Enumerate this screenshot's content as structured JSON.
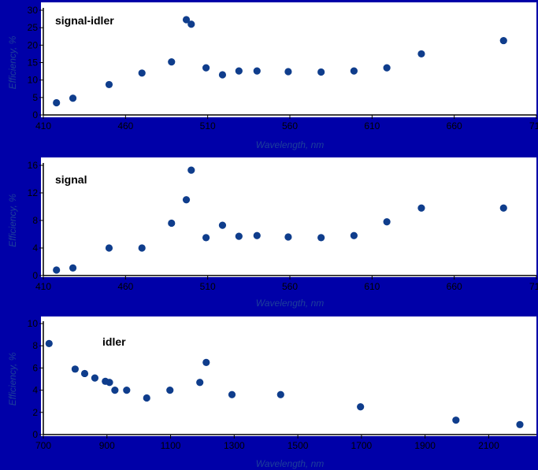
{
  "colors": {
    "background": "#0000a8",
    "panel": "#ffffff",
    "point": "#0f3d8c",
    "axis_title": "#1d3f9a"
  },
  "chart_data": [
    {
      "type": "scatter",
      "label": "signal-idler",
      "xlabel": "Wavelength, nm",
      "ylabel": "Efficiency, %",
      "xlim": [
        410,
        710
      ],
      "ylim": [
        0,
        30
      ],
      "xticks": [
        410,
        460,
        510,
        560,
        610,
        660,
        710
      ],
      "yticks": [
        0,
        5,
        10,
        15,
        20,
        25,
        30
      ],
      "grid": false,
      "points": [
        {
          "x": 418,
          "y": 3.5
        },
        {
          "x": 428,
          "y": 4.8
        },
        {
          "x": 450,
          "y": 8.7
        },
        {
          "x": 470,
          "y": 12.0
        },
        {
          "x": 488,
          "y": 15.2
        },
        {
          "x": 497,
          "y": 27.3
        },
        {
          "x": 500,
          "y": 26.0
        },
        {
          "x": 509,
          "y": 13.5
        },
        {
          "x": 519,
          "y": 11.5
        },
        {
          "x": 529,
          "y": 12.6
        },
        {
          "x": 540,
          "y": 12.6
        },
        {
          "x": 559,
          "y": 12.4
        },
        {
          "x": 579,
          "y": 12.3
        },
        {
          "x": 599,
          "y": 12.6
        },
        {
          "x": 619,
          "y": 13.5
        },
        {
          "x": 640,
          "y": 17.5
        },
        {
          "x": 690,
          "y": 21.3
        }
      ]
    },
    {
      "type": "scatter",
      "label": "signal",
      "xlabel": "Wavelength, nm",
      "ylabel": "Efficiency, %",
      "xlim": [
        410,
        710
      ],
      "ylim": [
        0,
        16
      ],
      "xticks": [
        410,
        460,
        510,
        560,
        610,
        660,
        710
      ],
      "yticks": [
        0,
        4,
        8,
        12,
        16
      ],
      "grid": false,
      "points": [
        {
          "x": 418,
          "y": 0.8
        },
        {
          "x": 428,
          "y": 1.1
        },
        {
          "x": 450,
          "y": 4.0
        },
        {
          "x": 470,
          "y": 4.0
        },
        {
          "x": 488,
          "y": 7.6
        },
        {
          "x": 497,
          "y": 11.0
        },
        {
          "x": 500,
          "y": 15.3
        },
        {
          "x": 509,
          "y": 5.5
        },
        {
          "x": 519,
          "y": 7.3
        },
        {
          "x": 529,
          "y": 5.7
        },
        {
          "x": 540,
          "y": 5.8
        },
        {
          "x": 559,
          "y": 5.6
        },
        {
          "x": 579,
          "y": 5.5
        },
        {
          "x": 599,
          "y": 5.8
        },
        {
          "x": 619,
          "y": 7.8
        },
        {
          "x": 640,
          "y": 9.8
        },
        {
          "x": 690,
          "y": 9.8
        }
      ]
    },
    {
      "type": "scatter",
      "label": "idler",
      "xlabel": "Wavelength, nm",
      "ylabel": "Efficiency, %",
      "xlim": [
        700,
        2250
      ],
      "ylim": [
        0,
        10
      ],
      "xticks": [
        700,
        900,
        1100,
        1300,
        1500,
        1700,
        1900,
        2100
      ],
      "yticks": [
        0,
        2,
        4,
        6,
        8,
        10
      ],
      "grid": false,
      "points": [
        {
          "x": 718,
          "y": 8.2
        },
        {
          "x": 800,
          "y": 5.9
        },
        {
          "x": 830,
          "y": 5.5
        },
        {
          "x": 862,
          "y": 5.1
        },
        {
          "x": 895,
          "y": 4.8
        },
        {
          "x": 908,
          "y": 4.7
        },
        {
          "x": 925,
          "y": 4.0
        },
        {
          "x": 962,
          "y": 4.0
        },
        {
          "x": 1025,
          "y": 3.3
        },
        {
          "x": 1098,
          "y": 4.0
        },
        {
          "x": 1192,
          "y": 4.7
        },
        {
          "x": 1212,
          "y": 6.5
        },
        {
          "x": 1293,
          "y": 3.6
        },
        {
          "x": 1446,
          "y": 3.6
        },
        {
          "x": 1697,
          "y": 2.5
        },
        {
          "x": 1997,
          "y": 1.3
        },
        {
          "x": 2198,
          "y": 0.9
        }
      ]
    }
  ]
}
